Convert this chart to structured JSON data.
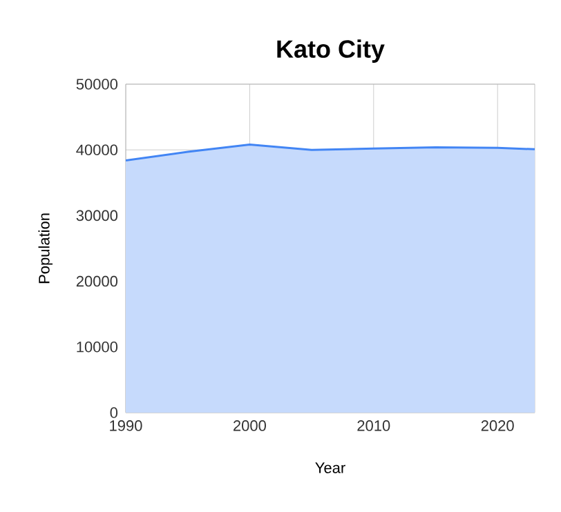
{
  "chart_data": {
    "type": "area",
    "title": "Kato City",
    "xlabel": "Year",
    "ylabel": "Population",
    "x": [
      1990,
      1995,
      2000,
      2005,
      2010,
      2015,
      2020,
      2023
    ],
    "series": [
      {
        "color": "#4285f4",
        "values": [
          38400,
          39700,
          40800,
          40000,
          40200,
          40400,
          40300,
          40100
        ]
      }
    ],
    "xlim": [
      1990,
      2023
    ],
    "xticks": [
      1990,
      2000,
      2010,
      2020
    ],
    "ylim": [
      0,
      50000
    ],
    "yticks": [
      0,
      10000,
      20000,
      30000,
      40000,
      50000
    ],
    "grid": true
  }
}
